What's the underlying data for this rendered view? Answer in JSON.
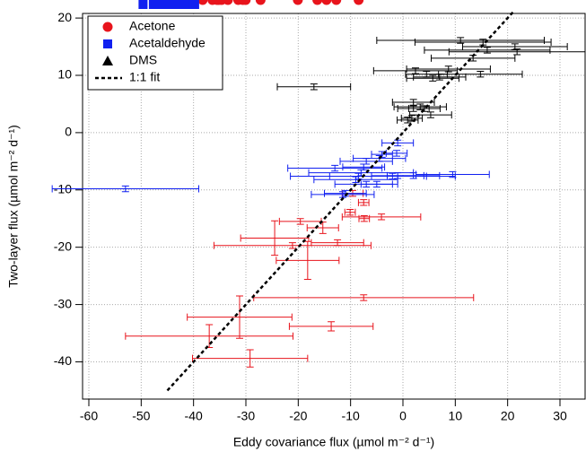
{
  "chart_data": {
    "type": "scatter",
    "xlabel": "Eddy covariance flux (µmol m⁻² d⁻¹)",
    "ylabel": "Two-layer flux (µmol m⁻² d⁻¹)",
    "xlim": [
      -61.2,
      34.8
    ],
    "ylim": [
      -46.5,
      20.8
    ],
    "xticks": [
      -60,
      -50,
      -40,
      -30,
      -20,
      -10,
      0,
      10,
      20,
      30
    ],
    "yticks": [
      -40,
      -30,
      -20,
      -10,
      0,
      10,
      20
    ],
    "grid": true,
    "legend": "top-left",
    "series": [
      {
        "name": "Acetone",
        "color": "#e8141c",
        "marker": "circle",
        "x": [
          -9.6,
          -7.5,
          -10.1,
          -7.4,
          -4.1,
          -19.6,
          -15.3,
          -24.5,
          -21.1,
          -12.5,
          -18.2,
          -7.5,
          -31.2,
          -13.7,
          -37,
          -29.2
        ],
        "values": [
          -10.6,
          -12.2,
          -13.9,
          -15,
          -14.7,
          -15.5,
          -16.6,
          -18.4,
          -19.7,
          -19.2,
          -22.3,
          -28.8,
          -32.2,
          -33.8,
          -35.5,
          -39.4
        ],
        "xerr": [
          2,
          1,
          1,
          1,
          7.5,
          4,
          3,
          6.5,
          15,
          5,
          6,
          21,
          10,
          8,
          16,
          11
        ],
        "yerr": [
          0.5,
          0.5,
          0.5,
          0.5,
          0.5,
          0.5,
          1,
          3,
          0.5,
          0.5,
          3.3,
          0.5,
          3.7,
          0.8,
          2,
          1.5
        ]
      },
      {
        "name": "Acetaldehyde",
        "color": "#1020f0",
        "marker": "square",
        "x": [
          -53,
          -1,
          -1.2,
          -4,
          -4.5,
          -7,
          -7.5,
          -13,
          -8,
          -8.5,
          -9,
          -7,
          -5,
          -2,
          -1,
          2,
          9.5,
          -11.5,
          -11
        ],
        "values": [
          -9.8,
          -1.8,
          -3.6,
          -3.8,
          -4.5,
          -5,
          -6,
          -6.2,
          -7,
          -7.6,
          -8.2,
          -9,
          -9,
          -7.6,
          -7.5,
          -7.5,
          -7.3,
          -10.8,
          -10.6
        ],
        "xerr": [
          14,
          3,
          2,
          2,
          5,
          5,
          4,
          9,
          10,
          13,
          8,
          6,
          3,
          12,
          5,
          5,
          7,
          6,
          4
        ],
        "yerr": [
          0.5,
          0.5,
          0.5,
          0.5,
          0.5,
          0.5,
          0.5,
          0.5,
          0.5,
          0.5,
          0.5,
          0.5,
          0.5,
          0.5,
          0.5,
          0.5,
          0.5,
          0.5,
          0.5
        ]
      },
      {
        "name": "DMS",
        "color": "#000000",
        "marker": "triangle",
        "x": [
          11,
          15.3,
          16.1,
          21.4,
          21.8,
          13.4,
          2.4,
          8.7,
          14.8,
          4.5,
          5.7,
          7,
          -17,
          2,
          3.3,
          4.1,
          5.3,
          2,
          0.9,
          1.7
        ],
        "values": [
          16.1,
          15.8,
          14.4,
          15,
          14.1,
          13,
          10.8,
          11.1,
          10.2,
          10.2,
          9.5,
          9.7,
          8,
          5.3,
          4.5,
          4.2,
          3.1,
          4.2,
          2.2,
          2.5
        ],
        "xerr": [
          16,
          13,
          12,
          10,
          13,
          8,
          8,
          8,
          8,
          4,
          5,
          5,
          7,
          4,
          5,
          3,
          4,
          3,
          2,
          2
        ],
        "yerr": [
          0.5,
          0.5,
          0.5,
          0.5,
          0.5,
          0.5,
          0.5,
          0.5,
          0.5,
          0.5,
          0.5,
          0.5,
          0.5,
          0.5,
          0.5,
          0.5,
          0.5,
          0.5,
          0.5,
          0.5
        ]
      },
      {
        "name": "1:1 fit",
        "color": "#000000",
        "marker": "dashed-line",
        "x": [
          -45,
          21
        ],
        "values": [
          -45,
          21
        ]
      }
    ]
  }
}
